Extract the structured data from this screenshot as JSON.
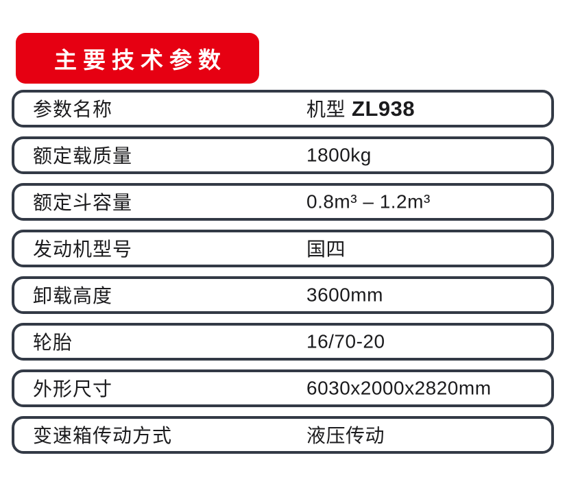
{
  "colors": {
    "accent_red": "#e60012",
    "row_border": "#333a46",
    "text": "#1b1b1d",
    "background": "#ffffff",
    "header_text": "#ffffff"
  },
  "header": {
    "title": "主要技术参数"
  },
  "table": {
    "rows": [
      {
        "label": "参数名称",
        "value_prefix": "机型",
        "value_bold": "ZL938"
      },
      {
        "label": "额定载质量",
        "value": "1800kg"
      },
      {
        "label": "额定斗容量",
        "value": "0.8m³ – 1.2m³"
      },
      {
        "label": "发动机型号",
        "value": "国四"
      },
      {
        "label": "卸载高度",
        "value": "3600mm"
      },
      {
        "label": "轮胎",
        "value": "16/70-20"
      },
      {
        "label": "外形尺寸",
        "value": "6030x2000x2820mm"
      },
      {
        "label": "变速箱传动方式",
        "value": "液压传动"
      }
    ]
  }
}
